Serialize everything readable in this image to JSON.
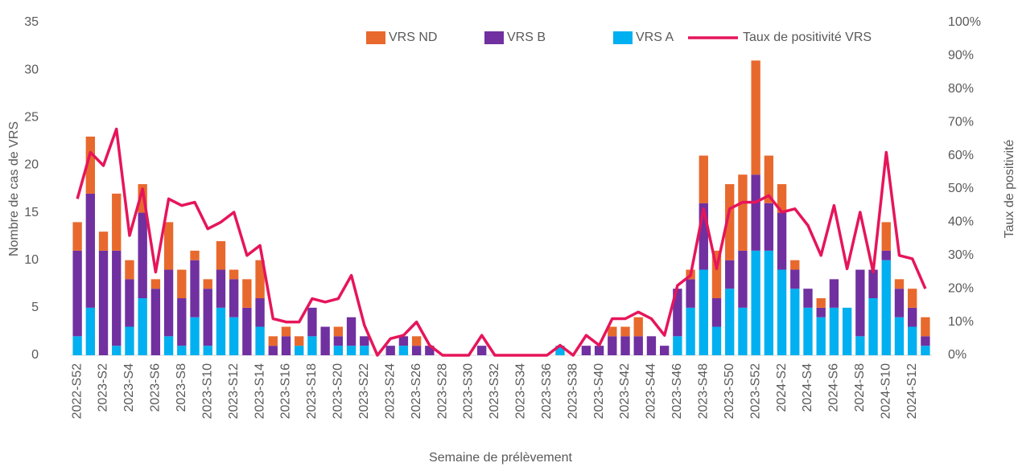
{
  "chart_data": {
    "type": "bar",
    "x_label": "Semaine de prélèvement",
    "y_label": "Nombre de cas de VRS",
    "y2_label": "Taux de positivité",
    "categories": [
      "2022-S52",
      null,
      "2023-S2",
      null,
      "2023-S4",
      null,
      "2023-S6",
      null,
      "2023-S8",
      null,
      "2023-S10",
      null,
      "2023-S12",
      null,
      "2023-S14",
      null,
      "2023-S16",
      null,
      "2023-S18",
      null,
      "2023-S20",
      null,
      "2023-S22",
      null,
      "2023-S24",
      null,
      "2023-S26",
      null,
      "2023-S28",
      null,
      "2023-S30",
      null,
      "2023-S32",
      null,
      "2023-S34",
      null,
      "2023-S36",
      null,
      "2023-S38",
      null,
      "2023-S40",
      null,
      "2023-S42",
      null,
      "2023-S44",
      null,
      "2023-S46",
      null,
      "2023-S48",
      null,
      "2023-S50",
      null,
      "2023-S52",
      null,
      "2024-S2",
      null,
      "2024-S4",
      null,
      "2024-S6",
      null,
      "2024-S8",
      null,
      "2024-S10",
      null,
      "2024-S12",
      null
    ],
    "series": [
      {
        "name": "VRS ND",
        "color": "#e8692d",
        "values": [
          3,
          6,
          2,
          6,
          2,
          3,
          1,
          5,
          3,
          1,
          1,
          3,
          1,
          3,
          4,
          1,
          1,
          1,
          0,
          0,
          1,
          0,
          0,
          0,
          0,
          0,
          1,
          0,
          0,
          0,
          0,
          0,
          0,
          0,
          0,
          0,
          0,
          0,
          0,
          0,
          0,
          1,
          1,
          2,
          0,
          0,
          0,
          1,
          5,
          5,
          8,
          8,
          12,
          5,
          3,
          1,
          0,
          1,
          0,
          0,
          0,
          0,
          3,
          1,
          2,
          2
        ]
      },
      {
        "name": "VRS B",
        "color": "#7030a0",
        "values": [
          9,
          12,
          11,
          10,
          5,
          9,
          7,
          7,
          5,
          6,
          6,
          4,
          4,
          5,
          3,
          1,
          2,
          0,
          3,
          3,
          1,
          3,
          1,
          0,
          1,
          1,
          1,
          1,
          0,
          0,
          0,
          1,
          0,
          0,
          0,
          0,
          0,
          0,
          0,
          1,
          1,
          2,
          2,
          2,
          2,
          1,
          5,
          3,
          7,
          3,
          3,
          6,
          8,
          5,
          6,
          2,
          2,
          1,
          3,
          0,
          7,
          3,
          1,
          3,
          2,
          1
        ]
      },
      {
        "name": "VRS A",
        "color": "#00b0f0",
        "values": [
          2,
          5,
          0,
          1,
          3,
          6,
          0,
          2,
          1,
          4,
          1,
          5,
          4,
          0,
          3,
          0,
          0,
          1,
          2,
          0,
          1,
          1,
          1,
          0,
          0,
          1,
          0,
          0,
          0,
          0,
          0,
          0,
          0,
          0,
          0,
          0,
          0,
          1,
          0,
          0,
          0,
          0,
          0,
          0,
          0,
          0,
          2,
          5,
          9,
          3,
          7,
          5,
          11,
          11,
          9,
          7,
          5,
          4,
          5,
          5,
          2,
          6,
          10,
          4,
          3,
          1
        ]
      },
      {
        "name": "Taux de positivité VRS",
        "color": "#e6155a",
        "axis": "y2",
        "type": "line",
        "values": [
          47,
          61,
          57,
          68,
          36,
          50,
          25,
          47,
          45,
          46,
          38,
          40,
          43,
          30,
          33,
          11,
          10,
          10,
          17,
          16,
          17,
          24,
          9,
          0,
          5,
          6,
          10,
          3,
          0,
          0,
          0,
          6,
          0,
          0,
          0,
          0,
          0,
          3,
          0,
          6,
          3,
          11,
          11,
          13,
          11,
          6,
          21,
          24,
          44,
          26,
          44,
          46,
          46,
          48,
          43,
          44,
          39,
          30,
          45,
          26,
          43,
          25,
          61,
          30,
          29,
          20
        ]
      }
    ],
    "stacked": true,
    "ylim": [
      0,
      35
    ],
    "yticks": [
      0,
      5,
      10,
      15,
      20,
      25,
      30,
      35
    ],
    "y2lim": [
      0,
      100
    ],
    "y2ticks": [
      {
        "value": 0,
        "label": "0%"
      },
      {
        "value": 10,
        "label": "10%"
      },
      {
        "value": 20,
        "label": "20%"
      },
      {
        "value": 30,
        "label": "30%"
      },
      {
        "value": 40,
        "label": "40%"
      },
      {
        "value": 50,
        "label": "50%"
      },
      {
        "value": 60,
        "label": "60%"
      },
      {
        "value": 70,
        "label": "70%"
      },
      {
        "value": 80,
        "label": "80%"
      },
      {
        "value": 90,
        "label": "90%"
      },
      {
        "value": 100,
        "label": "100%"
      }
    ],
    "legend": "top"
  }
}
